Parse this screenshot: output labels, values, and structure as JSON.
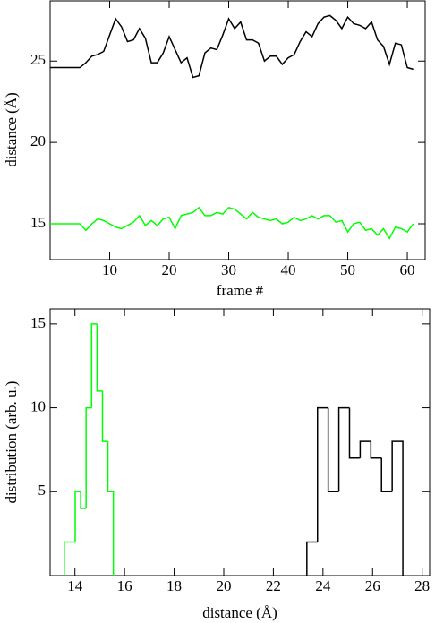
{
  "chart_data": [
    {
      "type": "line",
      "xlabel": "frame #",
      "ylabel": "distance (Å)",
      "x": [
        0,
        1,
        2,
        3,
        4,
        5,
        6,
        7,
        8,
        9,
        10,
        11,
        12,
        13,
        14,
        15,
        16,
        17,
        18,
        19,
        20,
        21,
        22,
        23,
        24,
        25,
        26,
        27,
        28,
        29,
        30,
        31,
        32,
        33,
        34,
        35,
        36,
        37,
        38,
        39,
        40,
        41,
        42,
        43,
        44,
        45,
        46,
        47,
        48,
        49,
        50,
        51,
        52,
        53,
        54,
        55,
        56,
        57,
        58,
        59,
        60,
        61
      ],
      "series": [
        {
          "color": "#000000",
          "values": [
            24.6,
            24.6,
            24.6,
            24.6,
            24.6,
            24.6,
            24.9,
            25.3,
            25.4,
            25.6,
            26.6,
            27.6,
            27.1,
            26.2,
            26.3,
            27.0,
            26.4,
            24.9,
            24.9,
            25.5,
            26.5,
            25.7,
            24.9,
            25.2,
            24.0,
            24.1,
            25.5,
            25.8,
            25.7,
            26.6,
            27.6,
            27.0,
            27.4,
            26.3,
            26.3,
            26.1,
            25.0,
            25.3,
            25.3,
            24.8,
            25.2,
            25.4,
            26.2,
            26.8,
            26.5,
            27.3,
            27.7,
            27.8,
            27.5,
            27.0,
            27.7,
            27.3,
            27.2,
            27.0,
            27.4,
            26.3,
            25.9,
            24.8,
            26.1,
            26.0,
            24.6,
            24.5
          ]
        },
        {
          "color": "#00ff00",
          "values": [
            15.0,
            15.0,
            15.0,
            15.0,
            15.0,
            15.0,
            14.6,
            15.0,
            15.3,
            15.2,
            15.0,
            14.8,
            14.7,
            14.9,
            15.1,
            15.5,
            14.9,
            15.2,
            14.9,
            15.3,
            15.4,
            14.7,
            15.5,
            15.6,
            15.7,
            16.0,
            15.5,
            15.5,
            15.7,
            15.6,
            16.0,
            15.9,
            15.6,
            15.3,
            15.7,
            15.4,
            15.3,
            15.2,
            15.3,
            15.0,
            15.1,
            15.4,
            15.2,
            15.3,
            15.5,
            15.3,
            15.5,
            15.5,
            15.1,
            15.2,
            14.5,
            15.0,
            15.1,
            14.6,
            14.7,
            14.3,
            14.7,
            14.1,
            14.8,
            14.7,
            14.5,
            15.0
          ]
        }
      ],
      "xlim": [
        0,
        63
      ],
      "xticks": [
        10,
        20,
        30,
        40,
        50,
        60
      ],
      "ylim": [
        12.8,
        28.7
      ],
      "yticks": [
        15,
        20,
        25
      ]
    },
    {
      "type": "histogram",
      "xlabel": "distance (Å)",
      "ylabel": "distribution (arb. u.)",
      "series": [
        {
          "color": "#00ff00",
          "bins": [
            13.57,
            13.79,
            14.01,
            14.23,
            14.45,
            14.67,
            14.89,
            15.11,
            15.33,
            15.55
          ],
          "values": [
            2,
            2,
            5,
            4,
            10,
            15,
            11,
            8,
            5
          ]
        },
        {
          "color": "#000000",
          "bins": [
            23.35,
            23.78,
            24.21,
            24.64,
            25.07,
            25.5,
            25.93,
            26.36,
            26.79,
            27.22
          ],
          "values": [
            2,
            10,
            5,
            10,
            7,
            8,
            7,
            5,
            8
          ]
        }
      ],
      "xlim": [
        13,
        28.3
      ],
      "xticks": [
        14,
        16,
        18,
        20,
        22,
        24,
        26,
        28
      ],
      "ylim": [
        0,
        15.9
      ],
      "yticks": [
        5,
        10,
        15
      ]
    }
  ]
}
